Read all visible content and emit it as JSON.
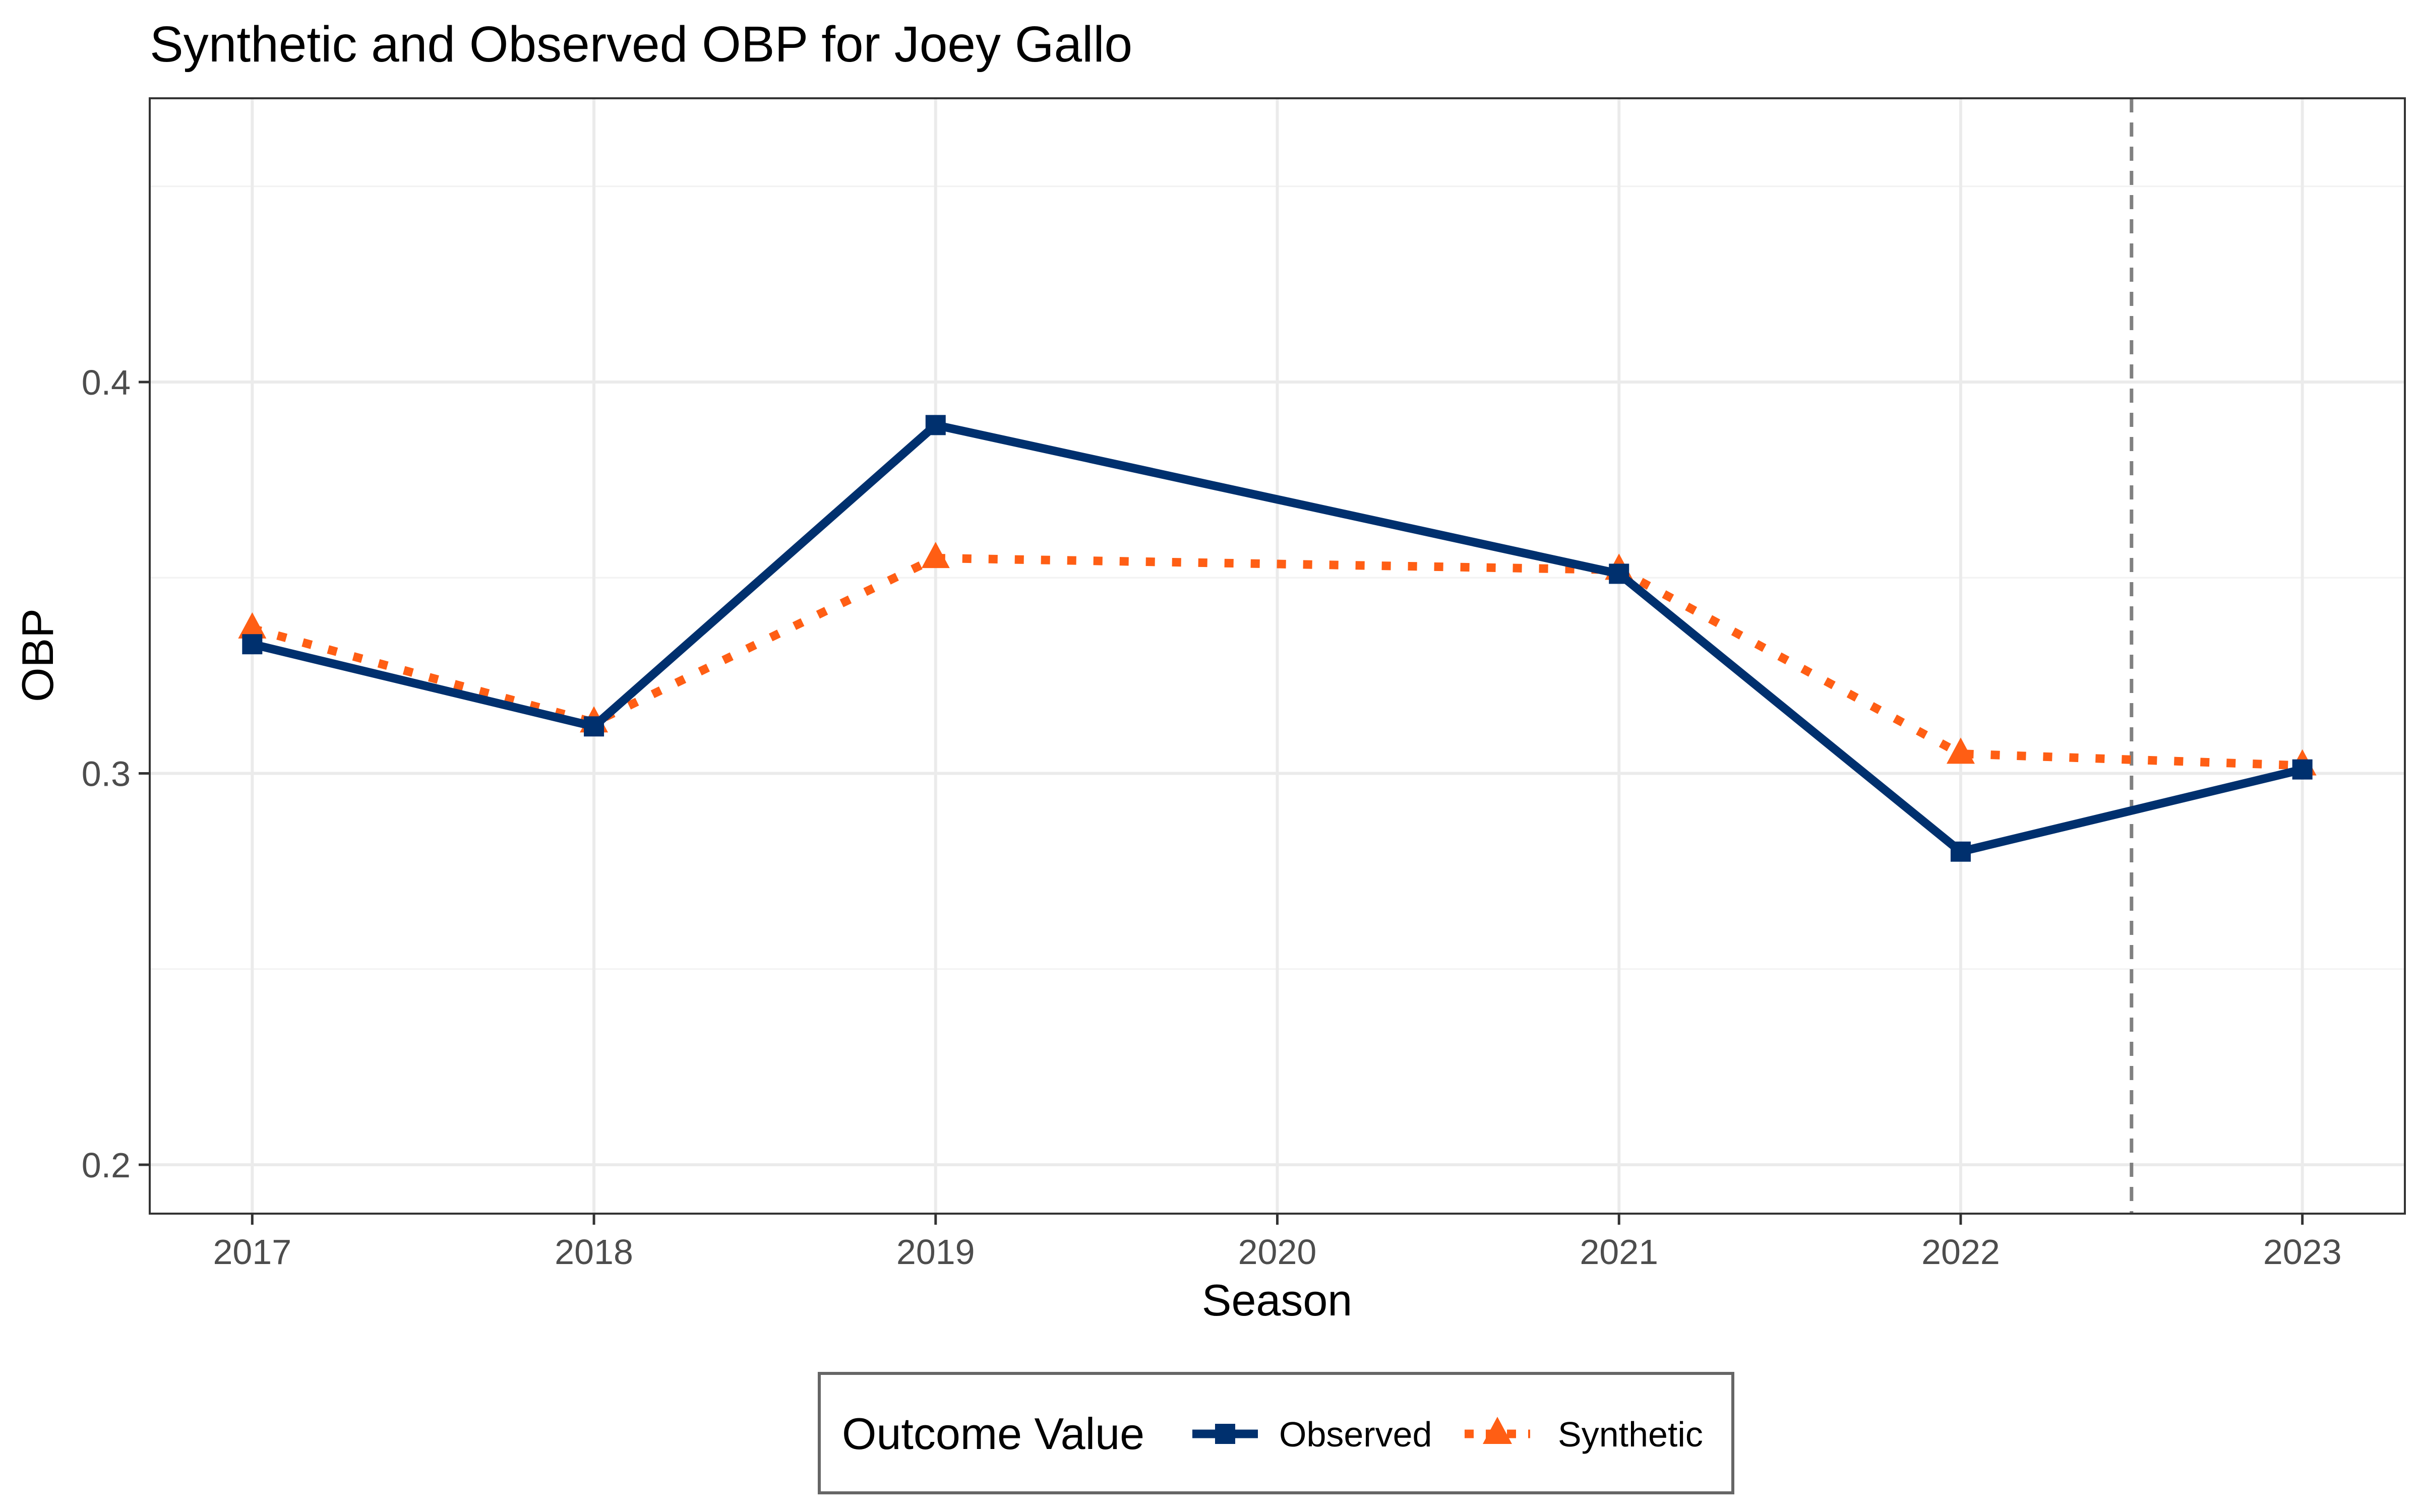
{
  "chart_data": {
    "type": "line",
    "title": "Synthetic and Observed OBP for Joey Gallo",
    "xlabel": "Season",
    "ylabel": "OBP",
    "x": [
      2017,
      2018,
      2019,
      2020,
      2021,
      2022,
      2023
    ],
    "xlim": [
      2016.7,
      2023.3
    ],
    "ylim": [
      0.1875,
      0.4725
    ],
    "y_ticks": [
      "0.2",
      "0.3",
      "0.4"
    ],
    "y_tick_values": [
      0.2,
      0.3,
      0.4
    ],
    "x_tick_labels": [
      "2017",
      "2018",
      "2019",
      "2020",
      "2021",
      "2022",
      "2023"
    ],
    "grid": true,
    "vline_x": 2022.5,
    "series": [
      {
        "name": "Observed",
        "color": "#00306e",
        "linestyle": "solid",
        "marker": "square",
        "points": [
          {
            "x": 2017,
            "y": 0.333
          },
          {
            "x": 2018,
            "y": 0.312
          },
          {
            "x": 2019,
            "y": 0.389
          },
          {
            "x": 2021,
            "y": 0.351
          },
          {
            "x": 2022,
            "y": 0.28
          },
          {
            "x": 2023,
            "y": 0.301
          }
        ]
      },
      {
        "name": "Synthetic",
        "color": "#ff5e14",
        "linestyle": "dotted",
        "marker": "triangle",
        "points": [
          {
            "x": 2017,
            "y": 0.337
          },
          {
            "x": 2018,
            "y": 0.313
          },
          {
            "x": 2019,
            "y": 0.355
          },
          {
            "x": 2021,
            "y": 0.352
          },
          {
            "x": 2022,
            "y": 0.305
          },
          {
            "x": 2023,
            "y": 0.302
          }
        ]
      }
    ],
    "legend": {
      "title": "Outcome Value",
      "position": "bottom"
    }
  }
}
